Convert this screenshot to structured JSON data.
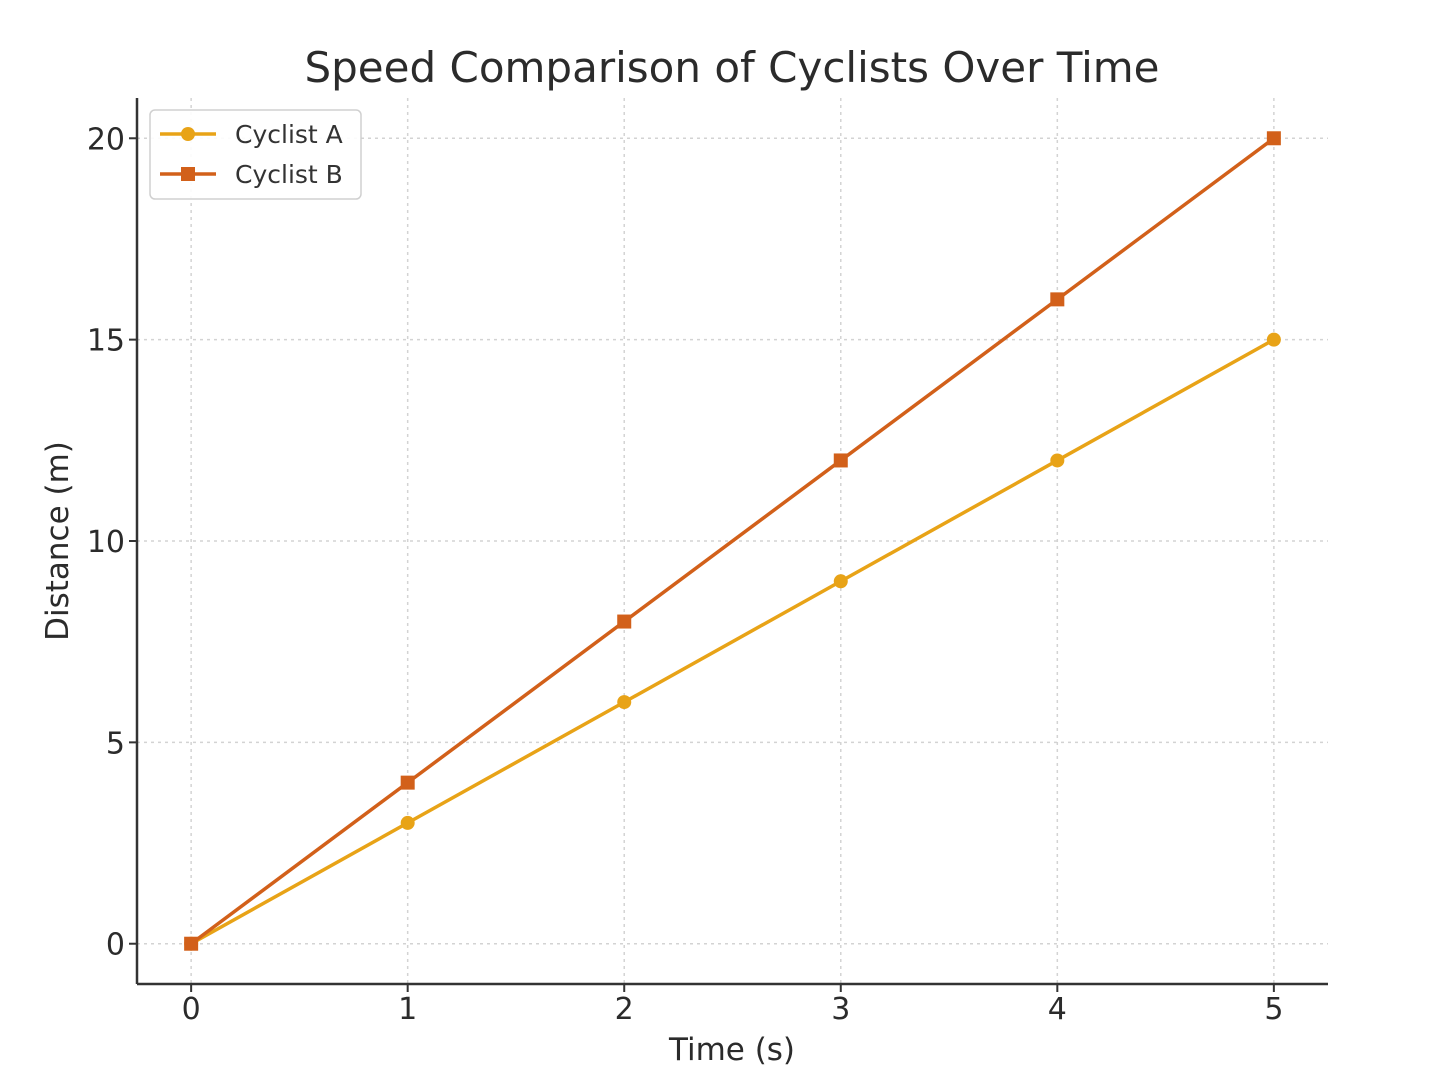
{
  "chart_data": {
    "type": "line",
    "title": "Speed Comparison of Cyclists Over Time",
    "xlabel": "Time (s)",
    "ylabel": "Distance (m)",
    "x": [
      0,
      1,
      2,
      3,
      4,
      5
    ],
    "x_ticks": [
      0,
      1,
      2,
      3,
      4,
      5
    ],
    "y_ticks": [
      0,
      5,
      10,
      15,
      20
    ],
    "xlim": [
      -0.25,
      5.25
    ],
    "ylim": [
      -1,
      21
    ],
    "grid": true,
    "legend_position": "top-left",
    "series": [
      {
        "name": "Cyclist A",
        "values": [
          0,
          3,
          6,
          9,
          12,
          15
        ],
        "color": "#E8A317",
        "marker": "circle"
      },
      {
        "name": "Cyclist B",
        "values": [
          0,
          4,
          8,
          12,
          16,
          20
        ],
        "color": "#D2601A",
        "marker": "square"
      }
    ]
  }
}
